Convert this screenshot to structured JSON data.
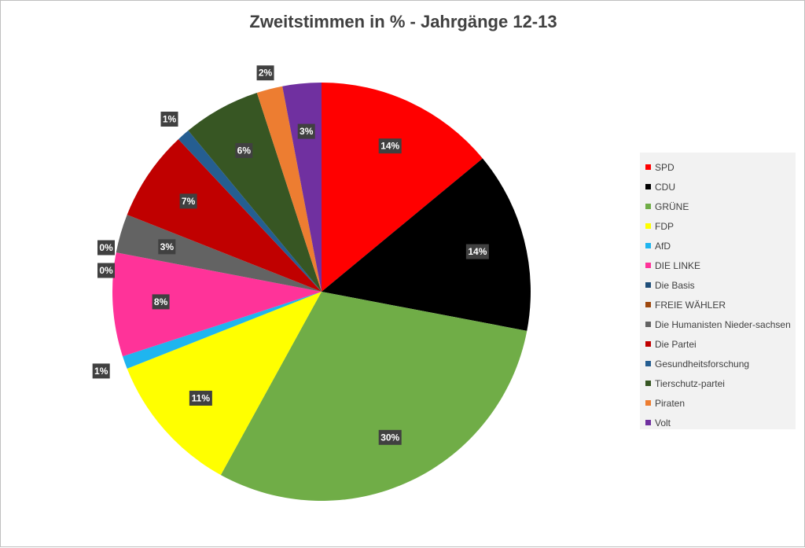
{
  "chart_data": {
    "type": "pie",
    "title": "Zweitstimmen in % - Jahrgänge 12-13",
    "legend_position": "right",
    "slices": [
      {
        "name": "SPD",
        "value": 14,
        "label": "14%",
        "color": "#ff0000"
      },
      {
        "name": "CDU",
        "value": 14,
        "label": "14%",
        "color": "#000000"
      },
      {
        "name": "GRÜNE",
        "value": 30,
        "label": "30%",
        "color": "#70ad47"
      },
      {
        "name": "FDP",
        "value": 11,
        "label": "11%",
        "color": "#ffff00"
      },
      {
        "name": "AfD",
        "value": 1,
        "label": "1%",
        "color": "#1fb5ef"
      },
      {
        "name": "DIE LINKE",
        "value": 8,
        "label": "8%",
        "color": "#ff3399"
      },
      {
        "name": "Die Basis",
        "value": 0,
        "label": "0%",
        "color": "#1f4e79"
      },
      {
        "name": "FREIE WÄHLER",
        "value": 0,
        "label": "0%",
        "color": "#9e480e"
      },
      {
        "name": "Die Humanisten Nieder-sachsen",
        "value": 3,
        "label": "3%",
        "color": "#636363"
      },
      {
        "name": "Die Partei",
        "value": 7,
        "label": "7%",
        "color": "#c00000"
      },
      {
        "name": "Gesundheitsforschung",
        "value": 1,
        "label": "1%",
        "color": "#255e91"
      },
      {
        "name": "Tierschutz-partei",
        "value": 6,
        "label": "6%",
        "color": "#375623"
      },
      {
        "name": "Piraten",
        "value": 2,
        "label": "2%",
        "color": "#ed7d31"
      },
      {
        "name": "Volt",
        "value": 3,
        "label": "3%",
        "color": "#7030a0"
      }
    ]
  }
}
